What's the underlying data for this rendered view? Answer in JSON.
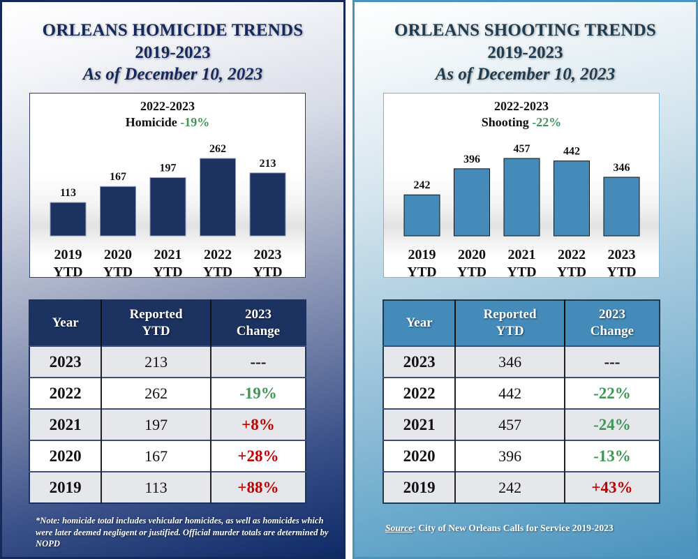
{
  "colors": {
    "homicide_bar": "#1c3260",
    "shooting_bar": "#448bba",
    "decrease": "#3f9657",
    "increase": "#c00000"
  },
  "homicide": {
    "title_line1": "ORLEANS HOMICIDE TRENDS",
    "title_line2": "2019-2023",
    "title_line3": "As of December 10, 2023",
    "chart_sub1": "2022-2023",
    "chart_sub2_label": "Homicide",
    "chart_sub2_change": "-19%",
    "table": {
      "headers": [
        "Year",
        "Reported YTD",
        "2023 Change"
      ],
      "rows": [
        {
          "year": "2023",
          "reported": "213",
          "change": "---",
          "trend": "none"
        },
        {
          "year": "2022",
          "reported": "262",
          "change": "-19%",
          "trend": "down"
        },
        {
          "year": "2021",
          "reported": "197",
          "change": "+8%",
          "trend": "up"
        },
        {
          "year": "2020",
          "reported": "167",
          "change": "+28%",
          "trend": "up"
        },
        {
          "year": "2019",
          "reported": "113",
          "change": "+88%",
          "trend": "up"
        }
      ]
    },
    "footnote": "*Note: homicide total includes vehicular homicides, as well as homicides which were later deemed negligent or justified. Official murder totals are determined by NOPD"
  },
  "shooting": {
    "title_line1": "ORLEANS SHOOTING TRENDS",
    "title_line2": "2019-2023",
    "title_line3": "As of December 10, 2023",
    "chart_sub1": "2022-2023",
    "chart_sub2_label": "Shooting",
    "chart_sub2_change": "-22%",
    "table": {
      "headers": [
        "Year",
        "Reported YTD",
        "2023 Change"
      ],
      "rows": [
        {
          "year": "2023",
          "reported": "346",
          "change": "---",
          "trend": "none"
        },
        {
          "year": "2022",
          "reported": "442",
          "change": "-22%",
          "trend": "down"
        },
        {
          "year": "2021",
          "reported": "457",
          "change": "-24%",
          "trend": "down"
        },
        {
          "year": "2020",
          "reported": "396",
          "change": "-13%",
          "trend": "down"
        },
        {
          "year": "2019",
          "reported": "242",
          "change": "+43%",
          "trend": "up"
        }
      ]
    },
    "source_label": "Source",
    "source_text": ":  City of New Orleans Calls for Service 2019-2023"
  },
  "chart_data": [
    {
      "type": "bar",
      "title": "2022-2023 Homicide -19%",
      "categories": [
        "2019 YTD",
        "2020 YTD",
        "2021 YTD",
        "2022 YTD",
        "2023 YTD"
      ],
      "values": [
        113,
        167,
        197,
        262,
        213
      ],
      "xlabel": "",
      "ylabel": "",
      "ylim": [
        0,
        300
      ],
      "grid": false,
      "legend": "none",
      "data_labels": true
    },
    {
      "type": "bar",
      "title": "2022-2023 Shooting -22%",
      "categories": [
        "2019 YTD",
        "2020 YTD",
        "2021 YTD",
        "2022 YTD",
        "2023 YTD"
      ],
      "values": [
        242,
        396,
        457,
        442,
        346
      ],
      "xlabel": "",
      "ylabel": "",
      "ylim": [
        0,
        500
      ],
      "grid": false,
      "legend": "none",
      "data_labels": true
    }
  ]
}
